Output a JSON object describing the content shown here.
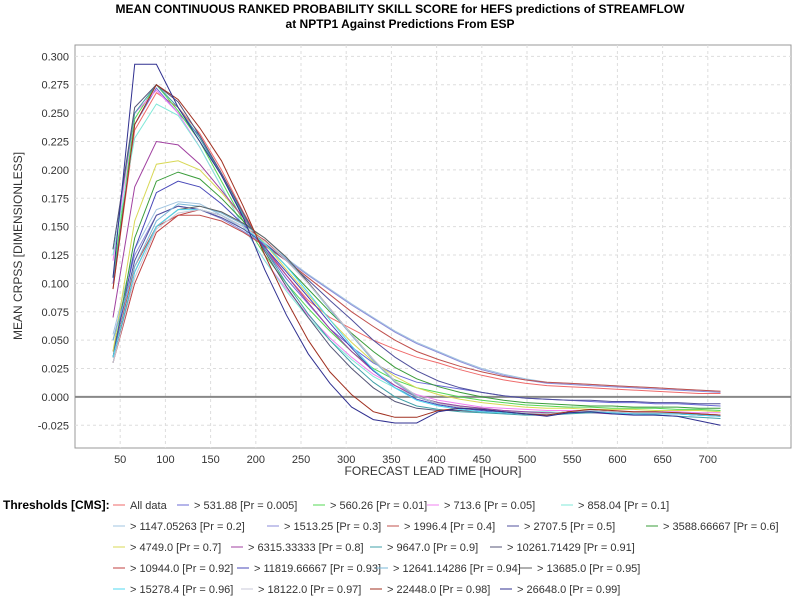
{
  "chart_data": {
    "type": "line",
    "title_line1": "MEAN CONTINUOUS RANKED PROBABILITY SKILL SCORE for HEFS predictions of STREAMFLOW",
    "title_line2": "at NPTP1 Against Predictions From ESP",
    "xlabel": "FORECAST LEAD TIME [HOUR]",
    "ylabel": "MEAN CRPSS [DIMENSIONLESS]",
    "xlim": [
      0,
      792
    ],
    "ylim": [
      -0.045,
      0.31
    ],
    "xticks": [
      50,
      100,
      150,
      200,
      250,
      300,
      350,
      400,
      450,
      500,
      550,
      600,
      650,
      700
    ],
    "yticks": [
      -0.025,
      0,
      0.025,
      0.05,
      0.075,
      0.1,
      0.125,
      0.15,
      0.175,
      0.2,
      0.225,
      0.25,
      0.275,
      0.3
    ],
    "grid": true,
    "zero_line": true,
    "legend_title": "Thresholds [CMS]:",
    "legend_position": "bottom",
    "x": [
      42,
      66,
      90,
      114,
      138,
      162,
      186,
      210,
      234,
      258,
      282,
      306,
      330,
      354,
      378,
      402,
      426,
      450,
      474,
      498,
      522,
      546,
      570,
      594,
      618,
      642,
      666,
      690,
      714
    ],
    "series": [
      {
        "name": "All data",
        "color": "#ef6a6a",
        "values": [
          0.095,
          0.235,
          0.268,
          0.255,
          0.232,
          0.2,
          0.163,
          0.13,
          0.107,
          0.085,
          0.07,
          0.06,
          0.05,
          0.042,
          0.035,
          0.03,
          0.024,
          0.019,
          0.015,
          0.012,
          0.01,
          0.009,
          0.008,
          0.007,
          0.006,
          0.005,
          0.004,
          0.003,
          0.003
        ]
      },
      {
        "name": "> 531.88 [Pr = 0.005]",
        "color": "#6b6bd6",
        "values": [
          0.1,
          0.24,
          0.272,
          0.25,
          0.23,
          0.195,
          0.16,
          0.13,
          0.104,
          0.082,
          0.06,
          0.044,
          0.03,
          0.02,
          0.013,
          0.01,
          0.007,
          0.004,
          0.001,
          -0.001,
          -0.002,
          -0.003,
          -0.004,
          -0.005,
          -0.005,
          -0.006,
          -0.006,
          -0.007,
          -0.008
        ]
      },
      {
        "name": "> 560.26 [Pr = 0.01]",
        "color": "#55d855",
        "values": [
          0.105,
          0.245,
          0.275,
          0.252,
          0.225,
          0.19,
          0.155,
          0.125,
          0.1,
          0.078,
          0.058,
          0.04,
          0.025,
          0.015,
          0.008,
          0.004,
          0.0,
          -0.003,
          -0.005,
          -0.007,
          -0.008,
          -0.009,
          -0.009,
          -0.01,
          -0.01,
          -0.01,
          -0.011,
          -0.011,
          -0.012
        ]
      },
      {
        "name": "> 713.6 [Pr = 0.05]",
        "color": "#f080f0",
        "values": [
          0.12,
          0.25,
          0.27,
          0.25,
          0.22,
          0.185,
          0.15,
          0.12,
          0.095,
          0.072,
          0.052,
          0.035,
          0.02,
          0.01,
          0.002,
          -0.003,
          -0.006,
          -0.009,
          -0.01,
          -0.011,
          -0.012,
          -0.012,
          -0.012,
          -0.013,
          -0.013,
          -0.013,
          -0.013,
          -0.014,
          -0.014
        ]
      },
      {
        "name": "> 858.04 [Pr = 0.1]",
        "color": "#80e8d8",
        "values": [
          0.125,
          0.228,
          0.258,
          0.248,
          0.22,
          0.185,
          0.15,
          0.12,
          0.093,
          0.07,
          0.05,
          0.033,
          0.018,
          0.008,
          0.0,
          -0.005,
          -0.008,
          -0.01,
          -0.012,
          -0.013,
          -0.013,
          -0.014,
          -0.014,
          -0.014,
          -0.015,
          -0.015,
          -0.015,
          -0.016,
          -0.016
        ]
      },
      {
        "name": "> 1147.05263 [Pr = 0.2]",
        "color": "#a0c4e0",
        "values": [
          0.055,
          0.13,
          0.165,
          0.172,
          0.17,
          0.16,
          0.148,
          0.135,
          0.122,
          0.108,
          0.095,
          0.082,
          0.07,
          0.058,
          0.048,
          0.04,
          0.032,
          0.025,
          0.02,
          0.016,
          0.013,
          0.012,
          0.011,
          0.01,
          0.009,
          0.008,
          0.007,
          0.006,
          0.005
        ]
      },
      {
        "name": "> 1513.25 [Pr = 0.3]",
        "color": "#8b8bd8",
        "values": [
          0.05,
          0.125,
          0.16,
          0.168,
          0.165,
          0.157,
          0.146,
          0.134,
          0.121,
          0.107,
          0.094,
          0.081,
          0.069,
          0.057,
          0.047,
          0.039,
          0.031,
          0.024,
          0.019,
          0.015,
          0.012,
          0.011,
          0.01,
          0.009,
          0.008,
          0.007,
          0.006,
          0.005,
          0.004
        ]
      },
      {
        "name": "> 1996.4 [Pr = 0.4]",
        "color": "#c0504d",
        "values": [
          0.035,
          0.115,
          0.15,
          0.16,
          0.16,
          0.155,
          0.145,
          0.133,
          0.12,
          0.105,
          0.09,
          0.075,
          0.062,
          0.05,
          0.04,
          0.033,
          0.027,
          0.022,
          0.018,
          0.015,
          0.013,
          0.012,
          0.011,
          0.01,
          0.009,
          0.008,
          0.007,
          0.006,
          0.005
        ]
      },
      {
        "name": "> 2707.5 [Pr = 0.5]",
        "color": "#50509c",
        "values": [
          0.04,
          0.12,
          0.16,
          0.168,
          0.165,
          0.158,
          0.148,
          0.135,
          0.12,
          0.103,
          0.085,
          0.068,
          0.05,
          0.035,
          0.023,
          0.014,
          0.008,
          0.004,
          0.001,
          -0.001,
          -0.002,
          -0.003,
          -0.003,
          -0.004,
          -0.004,
          -0.005,
          -0.005,
          -0.006,
          -0.006
        ]
      },
      {
        "name": "> 3588.66667 [Pr = 0.6]",
        "color": "#3a9c3a",
        "values": [
          0.035,
          0.14,
          0.19,
          0.198,
          0.192,
          0.175,
          0.155,
          0.135,
          0.115,
          0.095,
          0.075,
          0.056,
          0.04,
          0.026,
          0.016,
          0.009,
          0.004,
          0.0,
          -0.003,
          -0.005,
          -0.006,
          -0.007,
          -0.008,
          -0.008,
          -0.009,
          -0.009,
          -0.009,
          -0.01,
          -0.01
        ]
      },
      {
        "name": "> 4749.0 [Pr = 0.7]",
        "color": "#d8d855",
        "values": [
          0.04,
          0.155,
          0.205,
          0.208,
          0.2,
          0.18,
          0.158,
          0.135,
          0.112,
          0.09,
          0.068,
          0.048,
          0.031,
          0.018,
          0.008,
          0.002,
          -0.002,
          -0.005,
          -0.007,
          -0.009,
          -0.01,
          -0.01,
          -0.011,
          -0.011,
          -0.011,
          -0.012,
          -0.012,
          -0.012,
          -0.013
        ]
      },
      {
        "name": "> 6315.33333 [Pr = 0.8]",
        "color": "#a040a0",
        "values": [
          0.07,
          0.185,
          0.225,
          0.222,
          0.205,
          0.182,
          0.158,
          0.132,
          0.107,
          0.083,
          0.06,
          0.04,
          0.023,
          0.01,
          0.0,
          -0.005,
          -0.008,
          -0.01,
          -0.012,
          -0.013,
          -0.014,
          -0.014,
          -0.014,
          -0.015,
          -0.015,
          -0.015,
          -0.015,
          -0.016,
          -0.016
        ]
      },
      {
        "name": "> 9647.0 [Pr = 0.9]",
        "color": "#40a0a8",
        "values": [
          0.13,
          0.25,
          0.275,
          0.255,
          0.228,
          0.195,
          0.16,
          0.13,
          0.1,
          0.073,
          0.05,
          0.03,
          0.013,
          0.0,
          -0.008,
          -0.011,
          -0.013,
          -0.014,
          -0.015,
          -0.016,
          -0.016,
          -0.015,
          -0.014,
          -0.014,
          -0.015,
          -0.016,
          -0.017,
          -0.018,
          -0.019
        ]
      },
      {
        "name": "> 10261.71429 [Pr = 0.91]",
        "color": "#555577",
        "values": [
          0.13,
          0.255,
          0.275,
          0.26,
          0.23,
          0.197,
          0.162,
          0.128,
          0.097,
          0.07,
          0.045,
          0.025,
          0.008,
          -0.004,
          -0.01,
          -0.012,
          -0.012,
          -0.013,
          -0.014,
          -0.015,
          -0.016,
          -0.013,
          -0.012,
          -0.013,
          -0.014,
          -0.014,
          -0.015,
          -0.015,
          -0.017
        ]
      },
      {
        "name": "> 10944.0 [Pr = 0.92]",
        "color": "#c04040",
        "values": [
          0.03,
          0.1,
          0.145,
          0.16,
          0.165,
          0.16,
          0.15,
          0.138,
          0.12,
          0.1,
          0.078,
          0.055,
          0.033,
          0.013,
          0.0,
          -0.006,
          -0.009,
          -0.011,
          -0.013,
          -0.014,
          -0.015,
          -0.013,
          -0.012,
          -0.013,
          -0.014,
          -0.014,
          -0.014,
          -0.015,
          -0.016
        ]
      },
      {
        "name": "> 11819.66667 [Pr = 0.93]",
        "color": "#4848b8",
        "values": [
          0.035,
          0.13,
          0.18,
          0.19,
          0.185,
          0.17,
          0.152,
          0.132,
          0.11,
          0.088,
          0.065,
          0.043,
          0.023,
          0.008,
          -0.002,
          -0.007,
          -0.01,
          -0.012,
          -0.014,
          -0.015,
          -0.016,
          -0.014,
          -0.013,
          -0.014,
          -0.015,
          -0.015,
          -0.015,
          -0.016,
          -0.017
        ]
      },
      {
        "name": "> 12641.14286 [Pr = 0.94]",
        "color": "#7ab8d8",
        "values": [
          0.05,
          0.115,
          0.155,
          0.17,
          0.168,
          0.162,
          0.152,
          0.14,
          0.122,
          0.1,
          0.077,
          0.054,
          0.032,
          0.013,
          0.0,
          -0.006,
          -0.009,
          -0.011,
          -0.013,
          -0.014,
          -0.015,
          -0.013,
          -0.012,
          -0.013,
          -0.014,
          -0.014,
          -0.015,
          -0.015,
          -0.016
        ]
      },
      {
        "name": "> 13685.0 [Pr = 0.95]",
        "color": "#606060",
        "values": [
          0.03,
          0.11,
          0.15,
          0.165,
          0.168,
          0.163,
          0.153,
          0.14,
          0.123,
          0.101,
          0.078,
          0.055,
          0.033,
          0.014,
          0.001,
          -0.006,
          -0.009,
          -0.011,
          -0.013,
          -0.014,
          -0.015,
          -0.013,
          -0.012,
          -0.013,
          -0.014,
          -0.014,
          -0.014,
          -0.015,
          -0.016
        ]
      },
      {
        "name": "> 15278.4 [Pr = 0.96]",
        "color": "#50d8f0",
        "values": [
          0.035,
          0.11,
          0.15,
          0.165,
          0.165,
          0.16,
          0.15,
          0.135,
          0.115,
          0.092,
          0.068,
          0.045,
          0.024,
          0.008,
          -0.003,
          -0.008,
          -0.011,
          -0.013,
          -0.014,
          -0.015,
          -0.016,
          -0.014,
          -0.013,
          -0.014,
          -0.015,
          -0.015,
          -0.015,
          -0.016,
          -0.017
        ]
      },
      {
        "name": "> 18122.0 [Pr = 0.97]",
        "color": "#c8c8d8",
        "values": [
          0.03,
          0.105,
          0.148,
          0.162,
          0.165,
          0.16,
          0.15,
          0.137,
          0.12,
          0.1,
          0.078,
          0.055,
          0.033,
          0.014,
          0.001,
          -0.006,
          -0.009,
          -0.011,
          -0.013,
          -0.014,
          -0.015,
          -0.013,
          -0.012,
          -0.013,
          -0.014,
          -0.014,
          -0.014,
          -0.015,
          -0.016
        ]
      },
      {
        "name": "> 22448.0 [Pr = 0.98]",
        "color": "#a03020",
        "values": [
          0.095,
          0.24,
          0.275,
          0.262,
          0.237,
          0.208,
          0.168,
          0.125,
          0.085,
          0.05,
          0.022,
          0.002,
          -0.013,
          -0.018,
          -0.018,
          -0.012,
          -0.01,
          -0.011,
          -0.013,
          -0.015,
          -0.016,
          -0.013,
          -0.011,
          -0.012,
          -0.013,
          -0.013,
          -0.014,
          -0.015,
          -0.016
        ]
      },
      {
        "name": "> 26648.0 [Pr = 0.99]",
        "color": "#303090",
        "values": [
          0.105,
          0.293,
          0.293,
          0.255,
          0.225,
          0.195,
          0.158,
          0.112,
          0.072,
          0.038,
          0.012,
          -0.009,
          -0.02,
          -0.023,
          -0.023,
          -0.013,
          -0.01,
          -0.011,
          -0.013,
          -0.015,
          -0.017,
          -0.014,
          -0.013,
          -0.015,
          -0.016,
          -0.016,
          -0.017,
          -0.021,
          -0.025
        ]
      }
    ]
  }
}
